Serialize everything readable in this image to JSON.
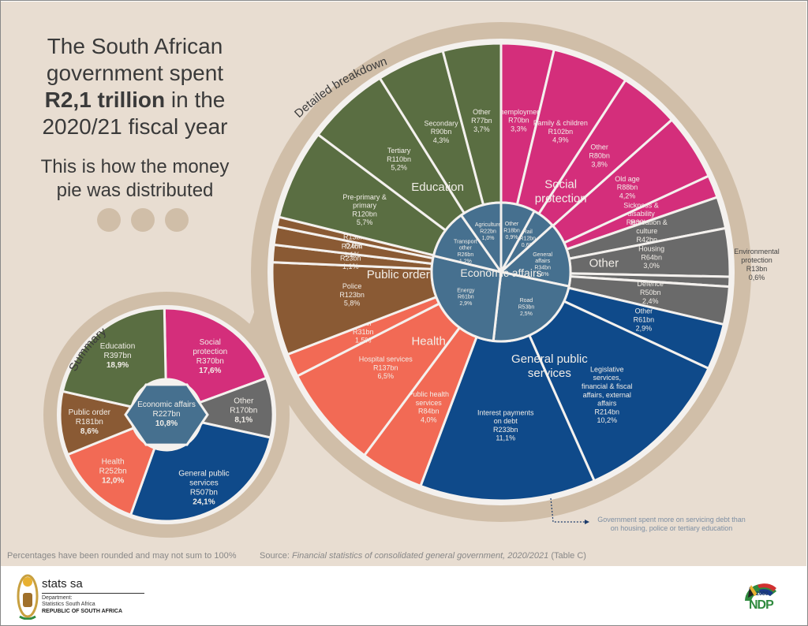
{
  "headline": {
    "line1": "The South African",
    "line2": "government spent",
    "bold": "R2,1 trillion",
    "line3_rest": " in the",
    "line4": "2020/21 fiscal year",
    "sub1": "This is how the money",
    "sub2": "pie was distributed"
  },
  "labels": {
    "summary_arc": "Summary",
    "detail_arc": "Detailed breakdown"
  },
  "colors": {
    "background": "#e8ddd1",
    "ring": "#d0bea8",
    "education": "#5a6e42",
    "social_protection": "#d42e7b",
    "other": "#6a6a6a",
    "general_public_services": "#0f4a8a",
    "health": "#f26a55",
    "public_order": "#8a5a34",
    "economic_affairs": "#46708f"
  },
  "chart_data": [
    {
      "type": "pie",
      "title": "Summary",
      "total": "R2,1 trillion",
      "unit": "R billion",
      "categories": [
        {
          "name": "Education",
          "value": 397,
          "percent": "18,9%",
          "label": "R397bn"
        },
        {
          "name": "Social protection",
          "value": 370,
          "percent": "17,6%",
          "label": "R370bn"
        },
        {
          "name": "Other",
          "value": 170,
          "percent": "8,1%",
          "label": "R170bn"
        },
        {
          "name": "General public services",
          "value": 507,
          "percent": "24,1%",
          "label": "R507bn"
        },
        {
          "name": "Health",
          "value": 252,
          "percent": "12,0%",
          "label": "R252bn"
        },
        {
          "name": "Public order",
          "value": 181,
          "percent": "8,6%",
          "label": "R181bn"
        },
        {
          "name": "Economic affairs",
          "value": 227,
          "percent": "10,8%",
          "label": "R227bn"
        }
      ]
    },
    {
      "type": "pie",
      "title": "Detailed breakdown",
      "unit": "R billion",
      "groups": [
        {
          "name": "Education",
          "items": [
            {
              "name": "Pre-primary & primary",
              "value": 120,
              "label": "R120bn",
              "percent": "5,7%"
            },
            {
              "name": "Tertiary",
              "value": 110,
              "label": "R110bn",
              "percent": "5,2%"
            },
            {
              "name": "Secondary",
              "value": 90,
              "label": "R90bn",
              "percent": "4,3%"
            },
            {
              "name": "Other",
              "value": 77,
              "label": "R77bn",
              "percent": "3,7%"
            }
          ]
        },
        {
          "name": "Social protection",
          "items": [
            {
              "name": "Unemployment",
              "value": 70,
              "label": "R70bn",
              "percent": "3,3%"
            },
            {
              "name": "Family & children",
              "value": 102,
              "label": "R102bn",
              "percent": "4,9%"
            },
            {
              "name": "Other",
              "value": 80,
              "label": "R80bn",
              "percent": "3,8%"
            },
            {
              "name": "Old age",
              "value": 88,
              "label": "R88bn",
              "percent": "4,2%"
            },
            {
              "name": "Sickness & disability",
              "value": 30,
              "label": "R30bn",
              "percent": "1,4%"
            }
          ]
        },
        {
          "name": "Other",
          "items": [
            {
              "name": "Recreation & culture",
              "value": 42,
              "label": "R42bn",
              "percent": "2,0%"
            },
            {
              "name": "Housing",
              "value": 64,
              "label": "R64bn",
              "percent": "3,0%"
            },
            {
              "name": "Environmental protection",
              "value": 13,
              "label": "R13bn",
              "percent": "0,6%"
            },
            {
              "name": "Defence",
              "value": 50,
              "label": "R50bn",
              "percent": "2,4%"
            }
          ]
        },
        {
          "name": "General public services",
          "items": [
            {
              "name": "Other",
              "value": 61,
              "label": "R61bn",
              "percent": "2,9%"
            },
            {
              "name": "Legislative services, financial & fiscal affairs, external affairs",
              "value": 214,
              "label": "R214bn",
              "percent": "10,2%"
            },
            {
              "name": "Interest payments on debt",
              "value": 233,
              "label": "R233bn",
              "percent": "11,1%"
            }
          ]
        },
        {
          "name": "Health",
          "items": [
            {
              "name": "Public health services",
              "value": 84,
              "label": "R84bn",
              "percent": "4,0%"
            },
            {
              "name": "Hospital services",
              "value": 137,
              "label": "R137bn",
              "percent": "6,5%"
            },
            {
              "name": "Other",
              "value": 31,
              "label": "R31bn",
              "percent": "1,5%"
            }
          ]
        },
        {
          "name": "Public order",
          "items": [
            {
              "name": "Police",
              "value": 123,
              "label": "R123bn",
              "percent": "5,8%"
            },
            {
              "name": "Courts",
              "value": 23,
              "label": "R23bn",
              "percent": "1,1%"
            },
            {
              "name": "Prisons",
              "value": 24,
              "label": "R24bn",
              "percent": "1,1%"
            },
            {
              "name": "Other",
              "value": 13,
              "label": "R13bn",
              "percent": "0,6%"
            }
          ]
        },
        {
          "name": "Economic affairs",
          "items": [
            {
              "name": "Other",
              "value": 18,
              "label": "R18bn",
              "percent": "0,9%"
            },
            {
              "name": "Rail",
              "value": 12,
              "label": "R12bn",
              "percent": "0,6%"
            },
            {
              "name": "General affairs",
              "value": 34,
              "label": "R34bn",
              "percent": "1,6%"
            },
            {
              "name": "Road",
              "value": 53,
              "label": "R53bn",
              "percent": "2,5%"
            },
            {
              "name": "Energy",
              "value": 61,
              "label": "R61bn",
              "percent": "2,9%"
            },
            {
              "name": "Transport other",
              "value": 26,
              "label": "R26bn",
              "percent": "1,2%"
            },
            {
              "name": "Agriculture",
              "value": 22,
              "label": "R22bn",
              "percent": "1,0%"
            }
          ]
        }
      ]
    }
  ],
  "callout": "Government spent more on servicing debt than on housing, police or tertiary education",
  "footer": {
    "rounding_note": "Percentages have been rounded and may not sum to 100%",
    "source_prefix": "Source: ",
    "source_title": "Financial statistics of consolidated general government, 2020/2021",
    "source_suffix": " (Table C)"
  },
  "logos": {
    "stats_name": "stats sa",
    "dept_line1": "Department:",
    "dept_line2": "Statistics South Africa",
    "republic": "REPUBLIC OF SOUTH AFRICA",
    "ndp_year": "2030",
    "ndp": "NDP"
  }
}
